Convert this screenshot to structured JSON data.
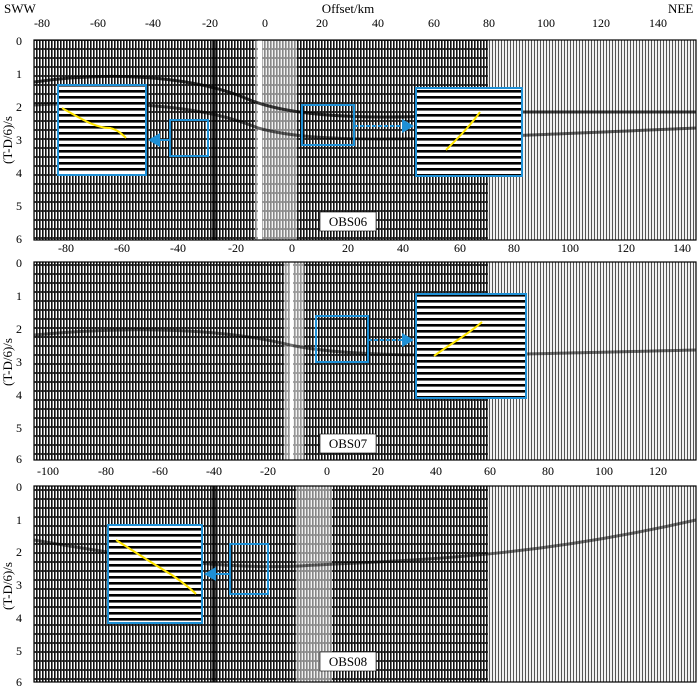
{
  "figure": {
    "left_direction": "SWW",
    "right_direction": "NEE",
    "x_axis_label": "Offset/km",
    "y_axis_label": "(T-D/6)/s",
    "colors": {
      "frame": "#000000",
      "highlight_box": "#1e90d6",
      "picked_phase": "#ffe600",
      "station_label_bg": "#ffffff"
    }
  },
  "panels": [
    {
      "station": "OBS06",
      "x_ticks": [
        "-80",
        "-60",
        "-40",
        "-20",
        "0",
        "20",
        "40",
        "60",
        "80",
        "100",
        "120",
        "140"
      ],
      "x_ticks_bottom": [
        "-80",
        "-60",
        "-40",
        "-20",
        "0",
        "20",
        "40",
        "60",
        "80",
        "100",
        "120",
        "140"
      ],
      "y_ticks": [
        "0",
        "1",
        "2",
        "3",
        "4",
        "5",
        "6"
      ]
    },
    {
      "station": "OBS07",
      "x_ticks": [
        "-80",
        "-60",
        "-40",
        "-20",
        "0",
        "20",
        "40",
        "60",
        "80",
        "100",
        "120",
        "140"
      ],
      "y_ticks": [
        "0",
        "1",
        "2",
        "3",
        "4",
        "5",
        "6"
      ]
    },
    {
      "station": "OBS08",
      "x_ticks": [
        "-100",
        "-80",
        "-60",
        "-40",
        "-20",
        "0",
        "20",
        "40",
        "60",
        "80",
        "100",
        "120"
      ],
      "y_ticks": [
        "0",
        "1",
        "2",
        "3",
        "4",
        "5",
        "6"
      ]
    }
  ]
}
